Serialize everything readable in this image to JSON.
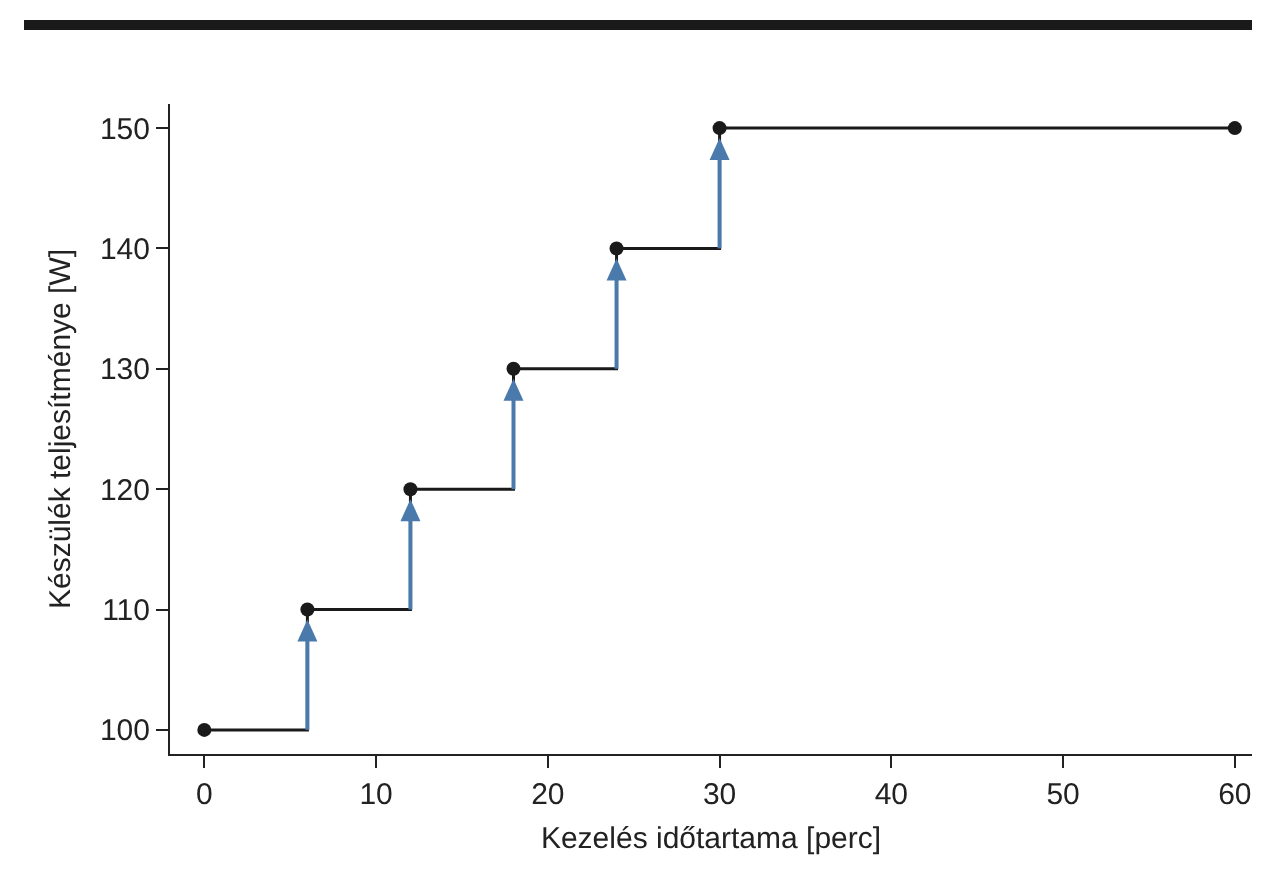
{
  "chart_data": {
    "type": "step",
    "xlabel": "Kezelés időtartama [perc]",
    "ylabel": "Készülék teljesítménye [W]",
    "x": [
      0,
      6,
      12,
      18,
      24,
      30,
      60
    ],
    "series": [
      {
        "color": "#1a1a1a",
        "values": [
          100,
          110,
          120,
          130,
          140,
          150,
          150
        ]
      }
    ],
    "xlim": [
      -2,
      61
    ],
    "xticks": [
      0,
      10,
      20,
      30,
      40,
      50,
      60
    ],
    "ylim": [
      98,
      152
    ],
    "yticks": [
      100,
      110,
      120,
      130,
      140,
      150
    ],
    "marker": "circle",
    "line_style": "solid"
  }
}
